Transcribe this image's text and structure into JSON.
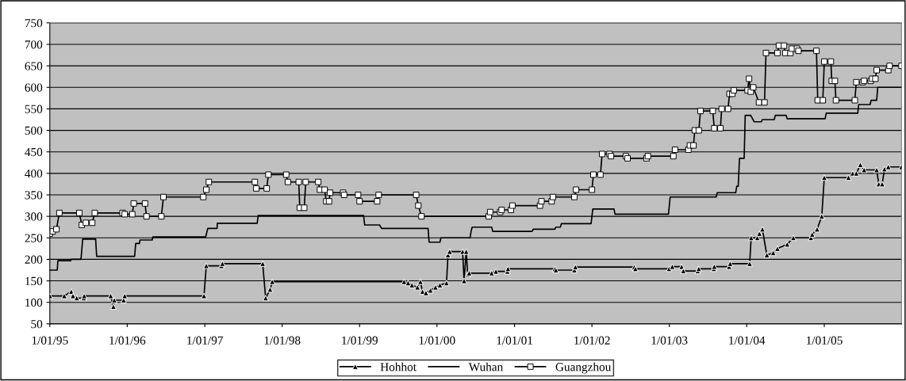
{
  "chart_data": {
    "type": "line",
    "xlim": [
      "1995-01-01",
      "2005-12-31"
    ],
    "xticks": [
      {
        "value": "1995-01-01",
        "label": "1/01/95"
      },
      {
        "value": "1996-01-01",
        "label": "1/01/96"
      },
      {
        "value": "1997-01-01",
        "label": "1/01/97"
      },
      {
        "value": "1998-01-01",
        "label": "1/01/98"
      },
      {
        "value": "1999-01-01",
        "label": "1/01/99"
      },
      {
        "value": "2000-01-01",
        "label": "1/01/00"
      },
      {
        "value": "2001-01-01",
        "label": "1/01/01"
      },
      {
        "value": "2002-01-01",
        "label": "1/01/02"
      },
      {
        "value": "2003-01-01",
        "label": "1/01/03"
      },
      {
        "value": "2004-01-01",
        "label": "1/01/04"
      },
      {
        "value": "2005-01-01",
        "label": "1/01/05"
      }
    ],
    "ylim": [
      50,
      750
    ],
    "yticks": [
      50,
      100,
      150,
      200,
      250,
      300,
      350,
      400,
      450,
      500,
      550,
      600,
      650,
      700,
      750
    ],
    "grid": "y",
    "legend": "bottom",
    "series": [
      {
        "name": "Hohhot",
        "color": "#000000",
        "marker": "triangle",
        "x": [
          "1995-01-01",
          "1995-03-10",
          "1995-04-12",
          "1995-04-20",
          "1995-05-08",
          "1995-06-10",
          "1995-06-12",
          "1995-10-15",
          "1995-10-28",
          "1995-11-01",
          "1995-12-15",
          "1995-12-20",
          "1996-12-28",
          "1997-01-08",
          "1997-03-20",
          "1997-03-25",
          "1997-10-01",
          "1997-10-15",
          "1997-11-05",
          "1997-11-15",
          "1999-07-30",
          "1999-08-18",
          "1999-09-05",
          "1999-10-01",
          "1999-10-15",
          "1999-10-25",
          "1999-11-10",
          "1999-12-01",
          "1999-12-25",
          "2000-01-15",
          "2000-02-15",
          "2000-02-22",
          "2000-03-01",
          "2000-05-01",
          "2000-05-08",
          "2000-05-18",
          "2000-05-25",
          "2000-06-01",
          "2000-09-15",
          "2000-10-05",
          "2000-11-28",
          "2000-12-01",
          "2001-07-10",
          "2001-07-15",
          "2001-10-10",
          "2001-10-15",
          "2002-07-20",
          "2002-07-25",
          "2002-12-31",
          "2003-01-15",
          "2003-02-28",
          "2003-03-08",
          "2003-05-15",
          "2003-05-20",
          "2003-07-30",
          "2003-08-01",
          "2003-10-10",
          "2003-10-15",
          "2004-01-15",
          "2004-01-22",
          "2004-02-20",
          "2004-03-01",
          "2004-03-15",
          "2004-04-05",
          "2004-05-05",
          "2004-05-25",
          "2004-07-10",
          "2004-08-08",
          "2004-10-30",
          "2004-11-05",
          "2004-11-28",
          "2004-12-20",
          "2005-01-01",
          "2005-04-25",
          "2005-05-15",
          "2005-06-01",
          "2005-06-20",
          "2005-07-08",
          "2005-09-05",
          "2005-09-15",
          "2005-10-01",
          "2005-10-12",
          "2005-10-30",
          "2005-12-31"
        ],
        "values": [
          115,
          115,
          125,
          115,
          110,
          110,
          115,
          115,
          90,
          105,
          105,
          115,
          115,
          185,
          185,
          190,
          190,
          110,
          130,
          148,
          148,
          145,
          140,
          135,
          148,
          125,
          122,
          128,
          135,
          140,
          145,
          210,
          218,
          218,
          150,
          218,
          165,
          168,
          168,
          172,
          172,
          178,
          178,
          175,
          175,
          182,
          182,
          178,
          178,
          183,
          183,
          173,
          173,
          178,
          178,
          183,
          183,
          190,
          190,
          250,
          250,
          260,
          270,
          210,
          215,
          225,
          235,
          250,
          250,
          258,
          270,
          300,
          390,
          390,
          400,
          400,
          420,
          408,
          408,
          375,
          375,
          410,
          415,
          415
        ]
      },
      {
        "name": "Wuhan",
        "color": "#000000",
        "marker": "none",
        "x": [
          "1995-01-01",
          "1995-02-05",
          "1995-02-08",
          "1995-04-10",
          "1995-04-12",
          "1995-05-28",
          "1995-06-05",
          "1995-08-05",
          "1995-08-10",
          "1996-02-05",
          "1996-02-10",
          "1996-02-28",
          "1996-03-01",
          "1996-04-28",
          "1996-05-01",
          "1997-01-05",
          "1997-01-10",
          "1997-01-15",
          "1997-02-28",
          "1997-03-01",
          "1997-09-05",
          "1997-09-10",
          "1999-01-20",
          "1999-01-25",
          "1999-04-05",
          "1999-04-15",
          "1999-11-20",
          "1999-11-25",
          "2000-01-15",
          "2000-01-20",
          "2000-06-05",
          "2000-06-10",
          "2000-06-15",
          "2000-09-15",
          "2000-09-20",
          "2001-03-25",
          "2001-03-30",
          "2001-07-10",
          "2001-07-15",
          "2001-08-05",
          "2001-08-10",
          "2001-12-28",
          "2002-01-05",
          "2002-04-15",
          "2002-04-20",
          "2002-12-28",
          "2003-01-05",
          "2003-08-10",
          "2003-08-15",
          "2003-11-10",
          "2003-11-15",
          "2003-11-22",
          "2003-11-28",
          "2003-12-20",
          "2003-12-25",
          "2004-01-20",
          "2004-02-05",
          "2004-03-10",
          "2004-03-15",
          "2004-05-10",
          "2004-05-15",
          "2004-07-05",
          "2004-07-10",
          "2005-01-05",
          "2005-01-10",
          "2005-06-08",
          "2005-06-12",
          "2005-08-05",
          "2005-08-10",
          "2005-09-05",
          "2005-09-10",
          "2005-12-31"
        ],
        "values": [
          175,
          175,
          197,
          197,
          200,
          200,
          247,
          247,
          207,
          207,
          237,
          237,
          245,
          245,
          252,
          252,
          262,
          272,
          272,
          284,
          284,
          302,
          302,
          280,
          280,
          272,
          272,
          240,
          240,
          250,
          250,
          265,
          275,
          275,
          265,
          265,
          270,
          270,
          275,
          275,
          283,
          283,
          317,
          317,
          305,
          305,
          345,
          345,
          355,
          355,
          370,
          370,
          435,
          435,
          535,
          535,
          520,
          520,
          525,
          525,
          535,
          535,
          527,
          527,
          540,
          540,
          560,
          560,
          570,
          570,
          600,
          600
        ]
      },
      {
        "name": "Guangzhou",
        "color": "#000000",
        "marker": "square",
        "x": [
          "1995-01-01",
          "1995-01-15",
          "1995-02-01",
          "1995-02-15",
          "1995-05-20",
          "1995-06-01",
          "1995-06-20",
          "1995-07-20",
          "1995-08-01",
          "1995-12-10",
          "1995-12-20",
          "1996-01-25",
          "1996-02-01",
          "1996-03-25",
          "1996-04-01",
          "1996-06-10",
          "1996-06-20",
          "1996-12-25",
          "1997-01-08",
          "1997-01-20",
          "1997-08-25",
          "1997-09-01",
          "1997-10-20",
          "1997-10-28",
          "1998-01-20",
          "1998-01-28",
          "1998-03-20",
          "1998-03-25",
          "1998-04-15",
          "1998-04-22",
          "1998-06-20",
          "1998-06-28",
          "1998-07-20",
          "1998-07-28",
          "1998-08-10",
          "1998-08-15",
          "1998-10-15",
          "1998-10-20",
          "1998-12-25",
          "1999-01-01",
          "1999-03-25",
          "1999-04-01",
          "1999-09-25",
          "1999-10-05",
          "1999-10-20",
          "2000-09-01",
          "2000-09-08",
          "2000-10-25",
          "2000-11-01",
          "2000-12-15",
          "2000-12-22",
          "2001-05-01",
          "2001-05-08",
          "2001-06-25",
          "2001-07-01",
          "2001-10-10",
          "2001-10-18",
          "2002-01-01",
          "2002-01-08",
          "2002-02-10",
          "2002-02-18",
          "2002-03-25",
          "2002-04-01",
          "2002-06-10",
          "2002-06-18",
          "2002-09-15",
          "2002-09-22",
          "2003-01-20",
          "2003-01-28",
          "2003-04-01",
          "2003-04-08",
          "2003-04-25",
          "2003-05-01",
          "2003-05-20",
          "2003-05-28",
          "2003-07-25",
          "2003-08-01",
          "2003-08-30",
          "2003-09-05",
          "2003-10-05",
          "2003-10-12",
          "2003-10-25",
          "2003-11-01",
          "2004-01-05",
          "2004-01-12",
          "2004-01-20",
          "2004-02-01",
          "2004-02-28",
          "2004-03-25",
          "2004-04-01",
          "2004-05-25",
          "2004-06-01",
          "2004-06-25",
          "2004-07-01",
          "2004-07-25",
          "2004-08-01",
          "2004-08-25",
          "2004-09-01",
          "2004-11-25",
          "2004-12-01",
          "2004-12-25",
          "2005-01-01",
          "2005-02-01",
          "2005-02-05",
          "2005-02-20",
          "2005-02-25",
          "2005-05-25",
          "2005-06-01",
          "2005-07-01",
          "2005-07-08",
          "2005-08-08",
          "2005-08-15",
          "2005-08-30",
          "2005-09-05",
          "2005-10-30",
          "2005-11-05",
          "2005-12-31"
        ],
        "values": [
          260,
          265,
          270,
          308,
          308,
          280,
          285,
          285,
          308,
          308,
          305,
          305,
          330,
          330,
          300,
          300,
          345,
          345,
          362,
          380,
          380,
          365,
          365,
          397,
          397,
          380,
          380,
          320,
          320,
          380,
          380,
          362,
          362,
          335,
          335,
          355,
          355,
          350,
          350,
          335,
          335,
          350,
          350,
          325,
          300,
          300,
          310,
          310,
          315,
          315,
          325,
          325,
          335,
          335,
          345,
          345,
          362,
          362,
          397,
          397,
          445,
          445,
          440,
          440,
          435,
          435,
          440,
          440,
          455,
          455,
          465,
          465,
          500,
          500,
          545,
          545,
          505,
          505,
          550,
          550,
          585,
          585,
          593,
          593,
          620,
          590,
          600,
          565,
          565,
          680,
          680,
          697,
          697,
          680,
          680,
          690,
          690,
          685,
          685,
          570,
          570,
          660,
          660,
          615,
          615,
          570,
          570,
          612,
          612,
          615,
          615,
          620,
          620,
          640,
          640,
          650,
          650
        ]
      }
    ]
  }
}
